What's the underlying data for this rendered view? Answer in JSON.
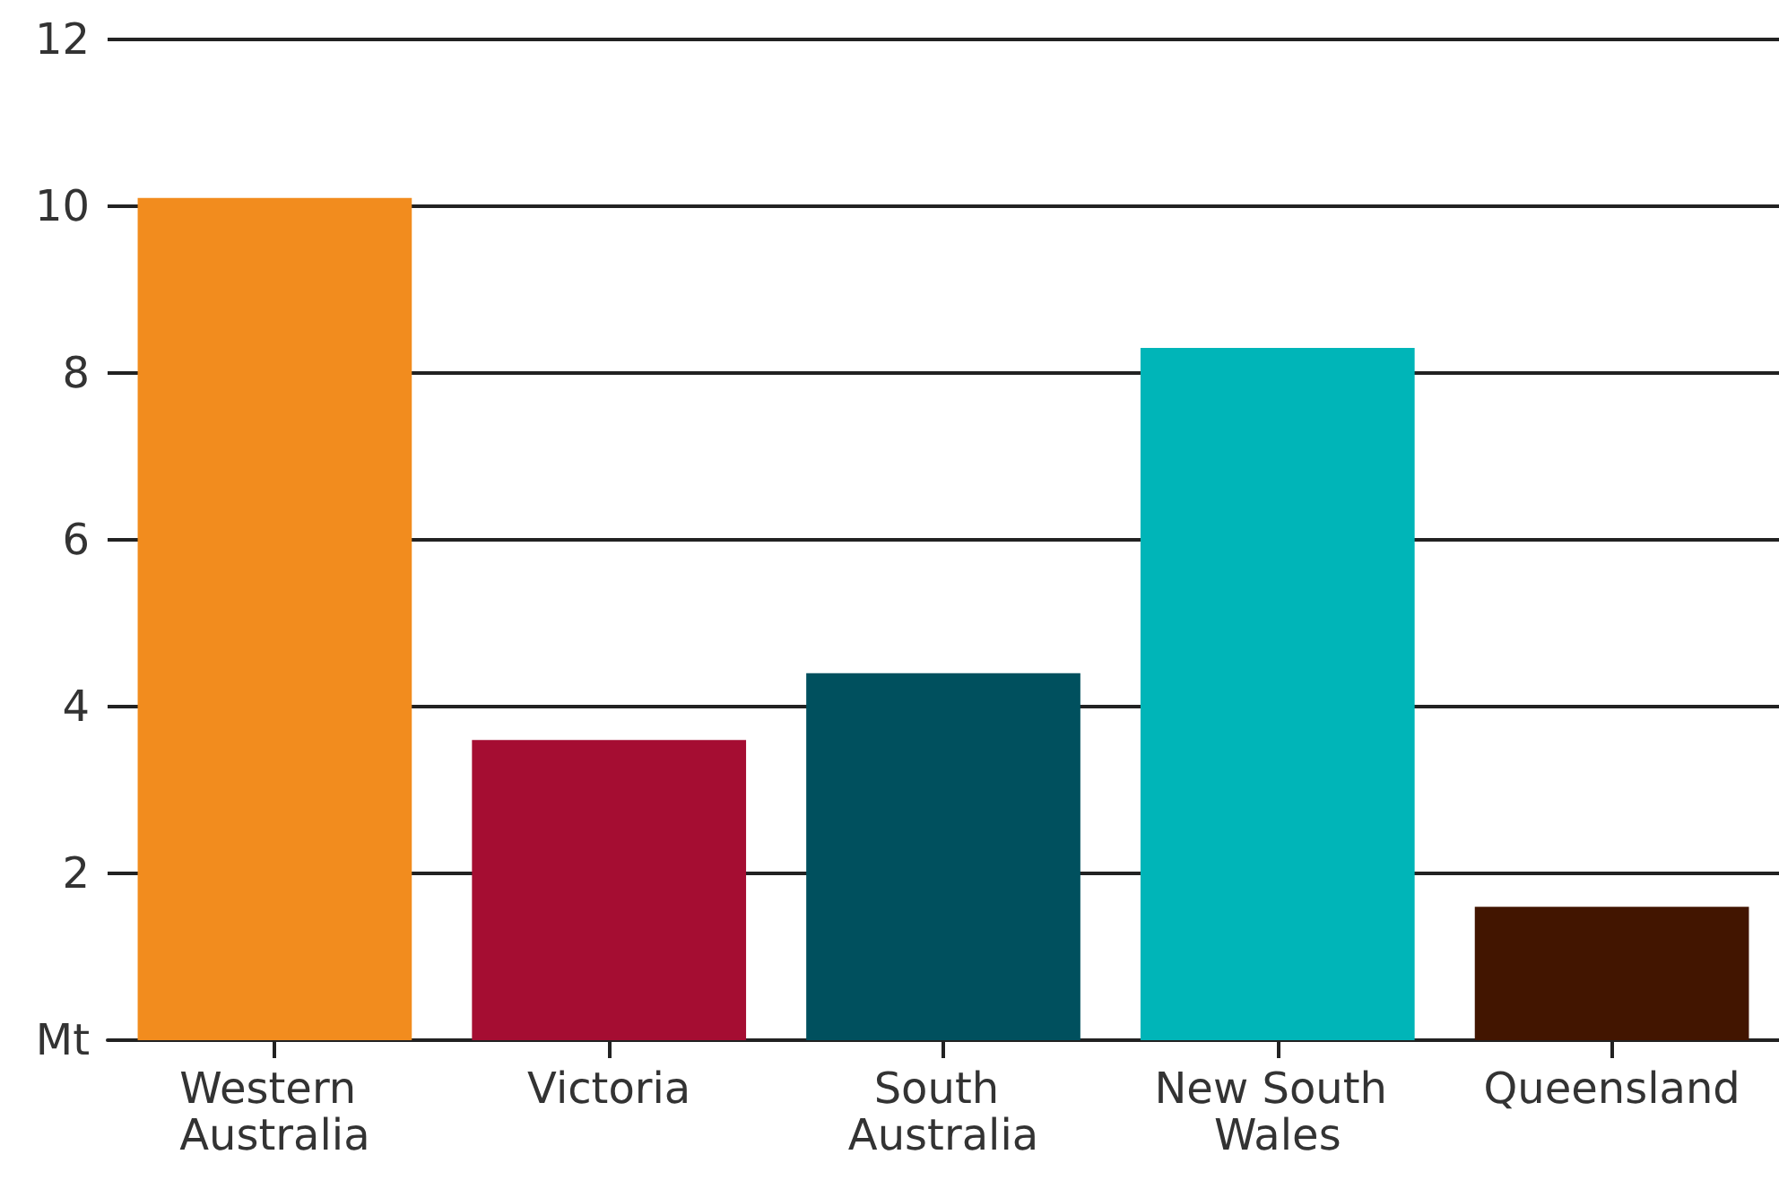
{
  "chart_data": {
    "type": "bar",
    "categories": [
      "Western Australia",
      "Victoria",
      "South Australia",
      "New South Wales",
      "Queensland"
    ],
    "values": [
      10.1,
      3.6,
      4.4,
      8.3,
      1.6
    ],
    "colors": [
      "#f28c1e",
      "#a50d32",
      "#00505e",
      "#00b5b8",
      "#421500"
    ],
    "ylim": [
      0,
      12
    ],
    "yticks": [
      {
        "value": 0,
        "label": "Mt"
      },
      2,
      4,
      6,
      8,
      10,
      12
    ],
    "grid": "y"
  }
}
